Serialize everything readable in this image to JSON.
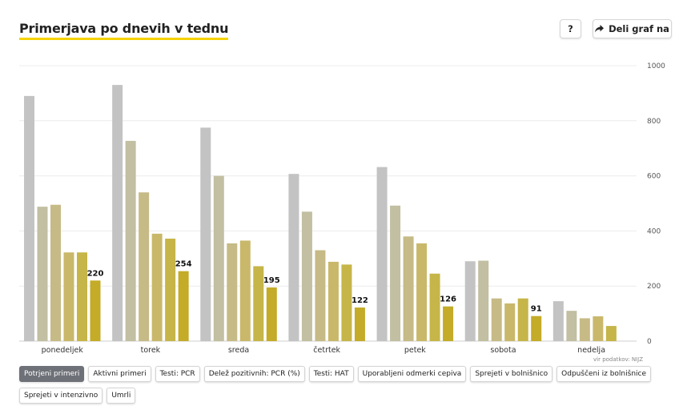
{
  "header": {
    "title": "Primerjava po dnevih v tednu",
    "help_label": "?",
    "share_label": "Deli graf na"
  },
  "source": "vir podatkov: NIJZ",
  "filters": [
    {
      "label": "Potrjeni primeri",
      "active": true
    },
    {
      "label": "Aktivni primeri",
      "active": false
    },
    {
      "label": "Testi: PCR",
      "active": false
    },
    {
      "label": "Delež pozitivnih: PCR (%)",
      "active": false
    },
    {
      "label": "Testi: HAT",
      "active": false
    },
    {
      "label": "Uporabljeni odmerki cepiva",
      "active": false
    },
    {
      "label": "Sprejeti v bolnišnico",
      "active": false
    },
    {
      "label": "Odpuščeni iz bolnišnice",
      "active": false
    },
    {
      "label": "Sprejeti v intenzivno",
      "active": false
    },
    {
      "label": "Umrli",
      "active": false
    }
  ],
  "chart_data": {
    "type": "bar",
    "categories": [
      "ponedeljek",
      "torek",
      "sreda",
      "četrtek",
      "petek",
      "sobota",
      "nedelja"
    ],
    "series": [
      {
        "values": [
          890,
          930,
          775,
          607,
          632,
          290,
          145
        ],
        "color": "#c3c3c3"
      },
      {
        "values": [
          488,
          727,
          600,
          470,
          492,
          292,
          110
        ],
        "color": "#c2bfa2"
      },
      {
        "values": [
          495,
          540,
          355,
          330,
          380,
          155,
          83
        ],
        "color": "#c6ba86"
      },
      {
        "values": [
          322,
          390,
          365,
          288,
          355,
          137,
          90
        ],
        "color": "#c9b86a"
      },
      {
        "values": [
          322,
          372,
          272,
          278,
          245,
          155,
          55
        ],
        "color": "#c6b548"
      },
      {
        "values": [
          220,
          254,
          195,
          122,
          126,
          91,
          null
        ],
        "color": "#c4ab28"
      }
    ],
    "data_labels": [
      220,
      254,
      195,
      122,
      126,
      91,
      null
    ],
    "ylim": [
      0,
      1000
    ],
    "yticks": [
      0,
      200,
      400,
      600,
      800,
      1000
    ],
    "y_axis_position": "right",
    "grid": true,
    "legend": false
  }
}
